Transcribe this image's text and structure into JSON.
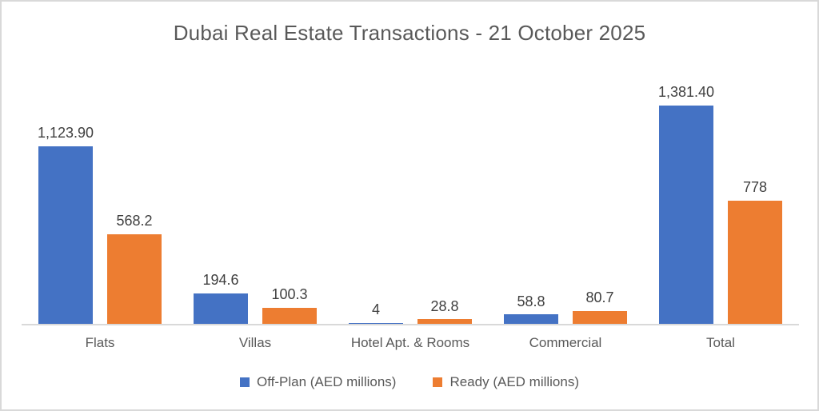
{
  "chart_data": {
    "type": "bar",
    "title": "Dubai Real Estate Transactions - 21 October 2025",
    "categories": [
      "Flats",
      "Villas",
      "Hotel Apt. & Rooms",
      "Commercial",
      "Total"
    ],
    "series": [
      {
        "name": "Off-Plan (AED millions)",
        "color": "#4472C4",
        "values": [
          1123.9,
          194.6,
          4,
          58.8,
          1381.4
        ],
        "labels": [
          "1,123.90",
          "194.6",
          "4",
          "58.8",
          "1,381.40"
        ]
      },
      {
        "name": "Ready (AED millions)",
        "color": "#ED7D31",
        "values": [
          568.2,
          100.3,
          28.8,
          80.7,
          778
        ],
        "labels": [
          "568.2",
          "100.3",
          "28.8",
          "80.7",
          "778"
        ]
      }
    ],
    "ylim": [
      0,
      1381.4
    ],
    "grid": false,
    "data_labels": true,
    "legend_position": "bottom",
    "colors": {
      "off_plan": "#4472C4",
      "ready": "#ED7D31",
      "axis_line": "#D9D9D9",
      "text": "#595959",
      "data_label_text": "#404040"
    }
  }
}
